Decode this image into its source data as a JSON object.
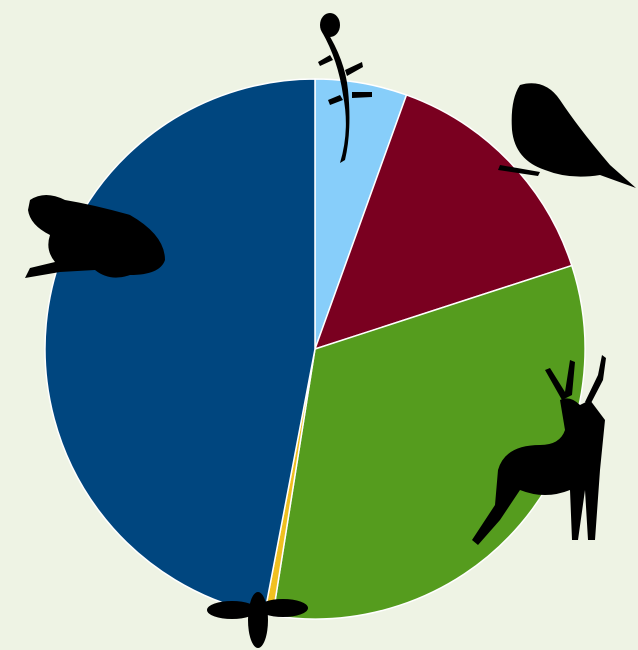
{
  "chart_data": {
    "type": "pie",
    "categories": [
      null,
      null,
      null,
      null,
      null
    ],
    "values": [
      5.5,
      14.5,
      32.5,
      0.5,
      47
    ],
    "colors": [
      "#87cefa",
      "#7a0020",
      "#559c1e",
      "#f0c020",
      "#00467f"
    ]
  }
}
